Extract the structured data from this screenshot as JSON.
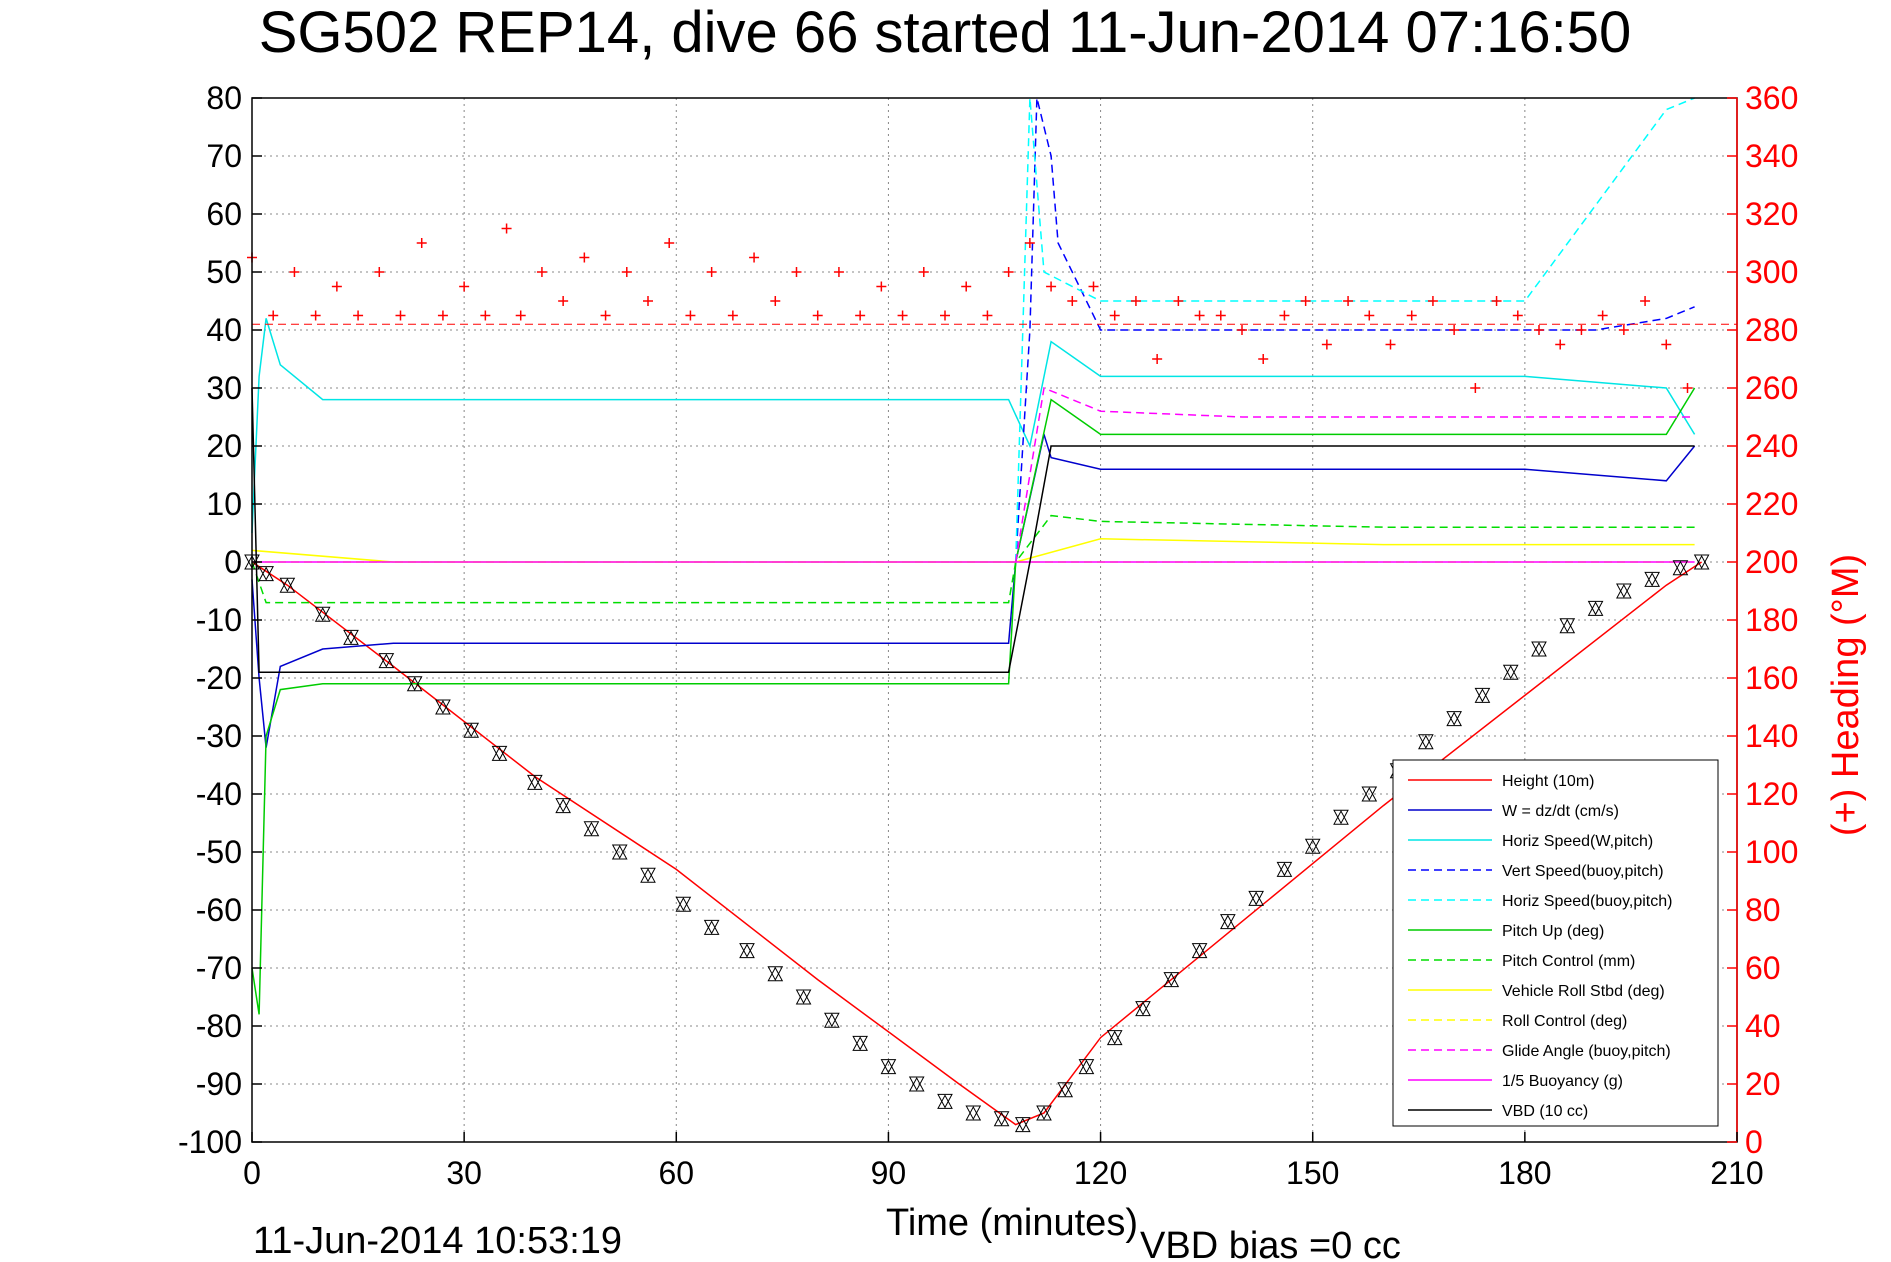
{
  "colors": {
    "height": "#ff0000",
    "w": "#0000cc",
    "horiz_w": "#00e5e5",
    "vert_buoy": "#0000ff",
    "horiz_buoy": "#00ffff",
    "pitch": "#00cc00",
    "pitch_ctrl": "#00dd00",
    "roll": "#ffff00",
    "roll_ctrl": "#ffff00",
    "glide": "#ff00ff",
    "buoyancy": "#ff00ff",
    "vbd": "#000000",
    "heading": "#ff0000",
    "axis": "#000000",
    "grid": "#888888"
  },
  "chart_data": {
    "type": "line",
    "title": "SG502 REP14, dive 66 started 11-Jun-2014 07:16:50",
    "xlabel": "Time (minutes)",
    "ylabel_right": "(+) Heading (°M)",
    "xlim": [
      0,
      210
    ],
    "ylim": [
      -100,
      80
    ],
    "ylim_right": [
      0,
      360
    ],
    "x_ticks": [
      "0",
      "30",
      "60",
      "90",
      "120",
      "150",
      "180",
      "210"
    ],
    "y_ticks": [
      "80",
      "70",
      "60",
      "50",
      "40",
      "30",
      "20",
      "10",
      "0",
      "-10",
      "-20",
      "-30",
      "-40",
      "-50",
      "-60",
      "-70",
      "-80",
      "-90",
      "-100"
    ],
    "y_ticks_right": [
      "360",
      "340",
      "320",
      "300",
      "280",
      "260",
      "240",
      "220",
      "200",
      "180",
      "160",
      "140",
      "120",
      "100",
      "80",
      "60",
      "40",
      "20",
      "0"
    ],
    "grid": true,
    "legend_position": "bottom-right",
    "legend": [
      "Height (10m)",
      "W = dz/dt (cm/s)",
      "Horiz Speed(W,pitch)",
      "Vert Speed(buoy,pitch)",
      "Horiz Speed(buoy,pitch)",
      "Pitch Up (deg)",
      "Pitch Control (mm)",
      "Vehicle Roll Stbd (deg)",
      "Roll Control (deg)",
      "Glide Angle (buoy,pitch)",
      "1/5 Buoyancy (g)",
      "VBD (10 cc)"
    ],
    "series": [
      {
        "name": "Height (10m)",
        "x": [
          0,
          5,
          20,
          40,
          60,
          80,
          100,
          108,
          112,
          120,
          140,
          160,
          180,
          200,
          205
        ],
        "values": [
          0,
          -4,
          -18,
          -37,
          -53,
          -72,
          -90,
          -97,
          -95,
          -82,
          -62,
          -42,
          -23,
          -4,
          0
        ]
      },
      {
        "name": "W = dz/dt (cm/s)",
        "x": [
          0,
          1,
          2,
          4,
          10,
          20,
          40,
          60,
          80,
          100,
          107,
          108,
          112,
          113,
          120,
          140,
          160,
          180,
          200,
          204
        ],
        "values": [
          -3,
          -20,
          -32,
          -18,
          -15,
          -14,
          -14,
          -14,
          -14,
          -14,
          -14,
          0,
          22,
          18,
          16,
          16,
          16,
          16,
          14,
          20
        ]
      },
      {
        "name": "Horiz Speed(W,pitch)",
        "x": [
          0,
          1,
          2,
          4,
          10,
          20,
          40,
          60,
          80,
          100,
          107,
          110,
          113,
          120,
          140,
          160,
          180,
          200,
          204
        ],
        "values": [
          5,
          32,
          42,
          34,
          28,
          28,
          28,
          28,
          28,
          28,
          28,
          20,
          38,
          32,
          32,
          32,
          32,
          30,
          22
        ]
      },
      {
        "name": "Vert Speed(buoy,pitch)",
        "x": [
          108,
          110,
          111,
          113,
          114,
          120,
          130,
          140,
          150,
          160,
          170,
          180,
          190,
          200,
          204
        ],
        "values": [
          0,
          40,
          80,
          70,
          55,
          40,
          40,
          40,
          40,
          40,
          40,
          40,
          40,
          42,
          44
        ]
      },
      {
        "name": "Horiz Speed(buoy,pitch)",
        "x": [
          108,
          110,
          112,
          120,
          140,
          160,
          180,
          200,
          204
        ],
        "values": [
          0,
          80,
          50,
          45,
          45,
          45,
          45,
          78,
          80
        ]
      },
      {
        "name": "Pitch Up (deg)",
        "x": [
          0,
          1,
          2,
          4,
          10,
          20,
          40,
          60,
          80,
          100,
          107,
          108,
          113,
          120,
          140,
          160,
          180,
          200,
          204
        ],
        "values": [
          -70,
          -78,
          -30,
          -22,
          -21,
          -21,
          -21,
          -21,
          -21,
          -21,
          -21,
          0,
          28,
          22,
          22,
          22,
          22,
          22,
          30
        ]
      },
      {
        "name": "Pitch Control (mm)",
        "x": [
          0,
          2,
          20,
          60,
          107,
          108,
          113,
          120,
          160,
          204
        ],
        "values": [
          0,
          -7,
          -7,
          -7,
          -7,
          0,
          8,
          7,
          6,
          6
        ]
      },
      {
        "name": "Vehicle Roll Stbd (deg)",
        "x": [
          0,
          20,
          60,
          107,
          108,
          120,
          160,
          204
        ],
        "values": [
          2,
          0,
          0,
          0,
          0,
          4,
          3,
          3
        ]
      },
      {
        "name": "Roll Control (deg)",
        "x": [
          0,
          20,
          60,
          107,
          120,
          160,
          204
        ],
        "values": [
          0,
          0,
          0,
          0,
          0,
          0,
          0
        ]
      },
      {
        "name": "Glide Angle (buoy,pitch)",
        "x": [
          108,
          112,
          120,
          140,
          160,
          180,
          200,
          204
        ],
        "values": [
          0,
          30,
          26,
          25,
          25,
          25,
          25,
          25
        ]
      },
      {
        "name": "1/5 Buoyancy (g)",
        "x": [
          0,
          107,
          108,
          204
        ],
        "values": [
          0,
          0,
          0,
          0
        ]
      },
      {
        "name": "VBD (10 cc)",
        "x": [
          0,
          1,
          107,
          110,
          113,
          120,
          204
        ],
        "values": [
          30,
          -19,
          -19,
          0,
          20,
          20,
          20
        ]
      }
    ],
    "heading_series": {
      "name": "(+) Heading (°M)",
      "reference_line": 282,
      "x": [
        0,
        3,
        6,
        9,
        12,
        15,
        18,
        21,
        24,
        27,
        30,
        33,
        36,
        38,
        41,
        44,
        47,
        50,
        53,
        56,
        59,
        62,
        65,
        68,
        71,
        74,
        77,
        80,
        83,
        86,
        89,
        92,
        95,
        98,
        101,
        104,
        107,
        110,
        113,
        116,
        119,
        122,
        125,
        128,
        131,
        134,
        137,
        140,
        143,
        146,
        149,
        152,
        155,
        158,
        161,
        164,
        167,
        170,
        173,
        176,
        179,
        182,
        185,
        188,
        191,
        194,
        197,
        200,
        203
      ],
      "values": [
        305,
        285,
        300,
        285,
        295,
        285,
        300,
        285,
        310,
        285,
        295,
        285,
        315,
        285,
        300,
        290,
        305,
        285,
        300,
        290,
        310,
        285,
        300,
        285,
        305,
        290,
        300,
        285,
        300,
        285,
        295,
        285,
        300,
        285,
        295,
        285,
        300,
        310,
        295,
        290,
        295,
        285,
        290,
        270,
        290,
        285,
        285,
        280,
        270,
        285,
        290,
        275,
        290,
        285,
        275,
        285,
        290,
        280,
        260,
        290,
        285,
        280,
        275,
        280,
        285,
        280,
        290,
        275,
        260
      ]
    },
    "markers": {
      "x": [
        0,
        2,
        5,
        10,
        14,
        19,
        23,
        27,
        31,
        35,
        40,
        44,
        48,
        52,
        56,
        61,
        65,
        70,
        74,
        78,
        82,
        86,
        90,
        94,
        98,
        102,
        106,
        109,
        112,
        115,
        118,
        122,
        126,
        130,
        134,
        138,
        142,
        146,
        150,
        154,
        158,
        162,
        166,
        170,
        174,
        178,
        182,
        186,
        190,
        194,
        198,
        202,
        205
      ],
      "values": [
        0,
        -2,
        -4,
        -9,
        -13,
        -17,
        -21,
        -25,
        -29,
        -33,
        -38,
        -42,
        -46,
        -50,
        -54,
        -59,
        -63,
        -67,
        -71,
        -75,
        -79,
        -83,
        -87,
        -90,
        -93,
        -95,
        -96,
        -97,
        -95,
        -91,
        -87,
        -82,
        -77,
        -72,
        -67,
        -62,
        -58,
        -53,
        -49,
        -44,
        -40,
        -36,
        -31,
        -27,
        -23,
        -19,
        -15,
        -11,
        -8,
        -5,
        -3,
        -1,
        0
      ]
    }
  },
  "footer": {
    "timestamp": "11-Jun-2014 10:53:19",
    "vbd_bias": "VBD bias =0 cc"
  }
}
